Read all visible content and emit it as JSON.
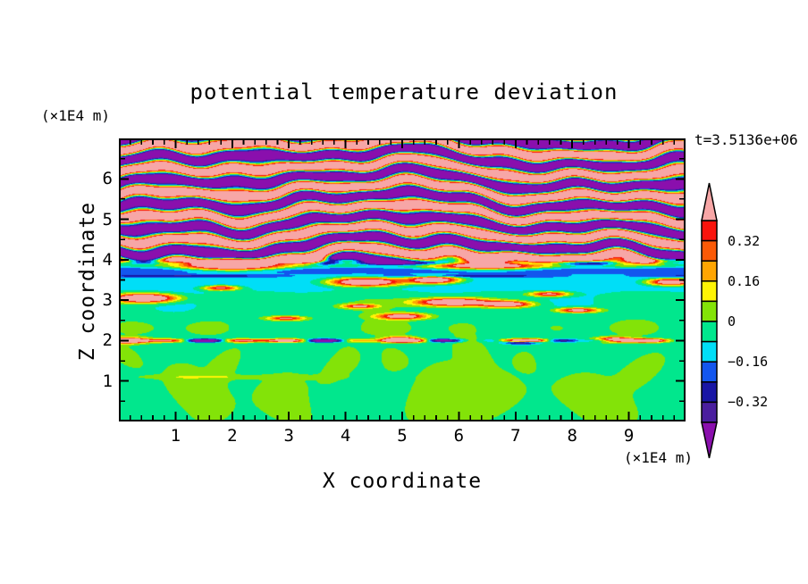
{
  "title": "potential temperature deviation",
  "annotations": {
    "time": "t=3.5136e+06"
  },
  "axes": {
    "x": {
      "title": "X coordinate",
      "unit": "(×1E4 m)",
      "range": [
        0,
        10
      ],
      "major_tick_values": [
        1,
        2,
        3,
        4,
        5,
        6,
        7,
        8,
        9
      ],
      "major_tick_labels": [
        "1",
        "2",
        "3",
        "4",
        "5",
        "6",
        "7",
        "8",
        "9"
      ],
      "minor_step": 0.2
    },
    "z": {
      "title": "Z coordinate",
      "unit": "(×1E4 m)",
      "range": [
        0,
        7
      ],
      "major_tick_values": [
        1,
        2,
        3,
        4,
        5,
        6
      ],
      "major_tick_labels": [
        "1",
        "2",
        "3",
        "4",
        "5",
        "6"
      ],
      "minor_step": 0.5
    }
  },
  "colorbar": {
    "tick_labels": [
      "0.32",
      "0.16",
      "0",
      "−0.16",
      "−0.32"
    ],
    "labeled_level_indices": [
      1,
      3,
      5,
      7,
      9
    ],
    "outline_color": "#000000"
  },
  "chart_data": {
    "type": "heatmap",
    "title": "potential temperature deviation",
    "xlabel": "X coordinate",
    "ylabel": "Z coordinate",
    "x_unit": "(×1E4 m)",
    "y_unit": "(×1E4 m)",
    "xlim": [
      0,
      10
    ],
    "ylim": [
      0,
      7
    ],
    "grid": false,
    "legend_position": "right-colorbar",
    "time_annotation": "t=3.5136e+06",
    "contour_levels": [
      -0.4,
      -0.32,
      -0.24,
      -0.16,
      -0.08,
      0,
      0.08,
      0.16,
      0.24,
      0.32,
      0.4
    ],
    "palette_low_to_high": [
      "#8A0FAD",
      "#4A1E9E",
      "#1916A5",
      "#1356EE",
      "#00DEF7",
      "#01E78D",
      "#83E308",
      "#FFF405",
      "#FFA502",
      "#FB5A07",
      "#F9140D",
      "#F7A6A6"
    ],
    "field_model": {
      "background": -0.042,
      "background_fade": {
        "start": 3.55,
        "width": 0.45
      },
      "wave": {
        "amplitude": 0.8,
        "z_wavelength": 0.545,
        "z_phase_ref": 3.9,
        "ramp_start": 3.8,
        "ramp_width": 0.28,
        "phase_terms": [
          [
            1.9,
            0.62,
            0.35,
            0
          ],
          [
            1.15,
            1.42,
            -0.6,
            1.1
          ],
          [
            0.75,
            2.55,
            1.2,
            2.3
          ],
          [
            0.5,
            4.1,
            -1.7,
            0.8
          ],
          [
            0.35,
            6.3,
            2.8,
            0
          ]
        ]
      },
      "layers": [
        {
          "z": 3.48,
          "sz": 0.27,
          "a": -0.105
        },
        {
          "z": 3.74,
          "sz": 0.09,
          "a": -0.16
        },
        {
          "z": 3.92,
          "sz": 0.055,
          "a": -0.3
        },
        {
          "z": 3.6,
          "sz": 0.035,
          "a": -0.2,
          "xmod": [
            1.3,
            0.5,
            0.5
          ]
        }
      ],
      "mottles": [
        {
          "z": 2.32,
          "sz": 0.2,
          "a": 0.085,
          "k1": 2.9,
          "p1": 0.4,
          "k2": 1.31,
          "p2": 2.0,
          "bias": 0.25,
          "clamp_pos": true
        },
        {
          "z": 2.9,
          "sz": 0.33,
          "a": 0.055,
          "k1": 1.8,
          "p1": 3.0,
          "k2": 0.9,
          "p2": 0.6,
          "bias": 0.0,
          "clamp_pos": false
        }
      ],
      "streaks": [
        {
          "z": 1.1,
          "sz": 0.055,
          "x": 1.9,
          "sx": 1.7,
          "a": 0.07
        }
      ],
      "interface": {
        "z": 2.0,
        "sz": 0.04,
        "bias": 0.15,
        "terms": [
          [
            0.55,
            2.8,
            0.5
          ],
          [
            0.3,
            6.1,
            1.7
          ]
        ]
      },
      "blobs": [
        {
          "x": 0.45,
          "z": 3.05,
          "sx": 0.5,
          "sz": 0.1,
          "a": 0.95
        },
        {
          "x": 2.0,
          "z": 3.88,
          "sx": 0.8,
          "sz": 0.13,
          "a": 1.05
        },
        {
          "x": 3.3,
          "z": 3.98,
          "sx": 0.5,
          "sz": 0.09,
          "a": 0.85
        },
        {
          "x": 6.5,
          "z": 3.9,
          "sx": 0.95,
          "sz": 0.12,
          "a": 1.05
        },
        {
          "x": 9.0,
          "z": 3.95,
          "sx": 0.45,
          "sz": 0.09,
          "a": 0.85
        },
        {
          "x": 4.35,
          "z": 3.45,
          "sx": 0.6,
          "sz": 0.1,
          "a": 0.9
        },
        {
          "x": 5.55,
          "z": 3.5,
          "sx": 0.45,
          "sz": 0.09,
          "a": 0.8
        },
        {
          "x": 9.75,
          "z": 3.45,
          "sx": 0.4,
          "sz": 0.08,
          "a": 0.8
        },
        {
          "x": 1.8,
          "z": 3.3,
          "sx": 0.3,
          "sz": 0.06,
          "a": 0.55
        },
        {
          "x": 5.9,
          "z": 2.95,
          "sx": 0.6,
          "sz": 0.09,
          "a": 0.85
        },
        {
          "x": 6.85,
          "z": 2.9,
          "sx": 0.4,
          "sz": 0.07,
          "a": 0.7
        },
        {
          "x": 5.0,
          "z": 2.6,
          "sx": 0.4,
          "sz": 0.07,
          "a": 0.65
        },
        {
          "x": 2.95,
          "z": 2.55,
          "sx": 0.3,
          "sz": 0.05,
          "a": 0.5
        },
        {
          "x": 8.1,
          "z": 2.75,
          "sx": 0.35,
          "sz": 0.06,
          "a": 0.6
        },
        {
          "x": 7.6,
          "z": 3.15,
          "sx": 0.33,
          "sz": 0.06,
          "a": 0.55
        },
        {
          "x": 4.25,
          "z": 2.85,
          "sx": 0.28,
          "sz": 0.05,
          "a": 0.5
        },
        {
          "x": 0.15,
          "z": 2.0,
          "sx": 0.35,
          "sz": 0.07,
          "a": 0.6
        },
        {
          "x": 8.75,
          "z": 2.02,
          "sx": 0.3,
          "sz": 0.06,
          "a": 0.8
        },
        {
          "x": 4.95,
          "z": 2.03,
          "sx": 0.25,
          "sz": 0.06,
          "a": 0.75
        },
        {
          "x": 7.1,
          "z": 1.96,
          "sx": 0.28,
          "sz": 0.05,
          "a": -0.5
        }
      ],
      "plumes": [
        {
          "x": 1.35,
          "z": 0.7,
          "sx": 0.55,
          "sz": 0.8,
          "a": 0.1
        },
        {
          "x": 2.1,
          "z": 1.45,
          "sx": 0.25,
          "sz": 0.4,
          "a": 0.09
        },
        {
          "x": 3.1,
          "z": 0.55,
          "sx": 0.5,
          "sz": 0.7,
          "a": 0.1
        },
        {
          "x": 3.8,
          "z": 1.4,
          "sx": 0.3,
          "sz": 0.5,
          "a": 0.09
        },
        {
          "x": 5.9,
          "z": 0.65,
          "sx": 1.05,
          "sz": 0.9,
          "a": 0.105
        },
        {
          "x": 6.4,
          "z": 1.8,
          "sx": 0.27,
          "sz": 0.33,
          "a": 0.09
        },
        {
          "x": 8.5,
          "z": 0.5,
          "sx": 0.65,
          "sz": 0.75,
          "a": 0.1
        },
        {
          "x": 9.35,
          "z": 1.3,
          "sx": 0.35,
          "sz": 0.45,
          "a": 0.09
        },
        {
          "x": 0.3,
          "z": 1.6,
          "sx": 0.25,
          "sz": 0.3,
          "a": 0.085
        },
        {
          "x": 4.6,
          "z": 1.55,
          "sx": 0.22,
          "sz": 0.28,
          "a": 0.085
        },
        {
          "x": 7.4,
          "z": 1.5,
          "sx": 0.2,
          "sz": 0.25,
          "a": 0.08
        }
      ],
      "plume_wiggle": {
        "amp": 0.25,
        "k": 2.2
      }
    }
  }
}
